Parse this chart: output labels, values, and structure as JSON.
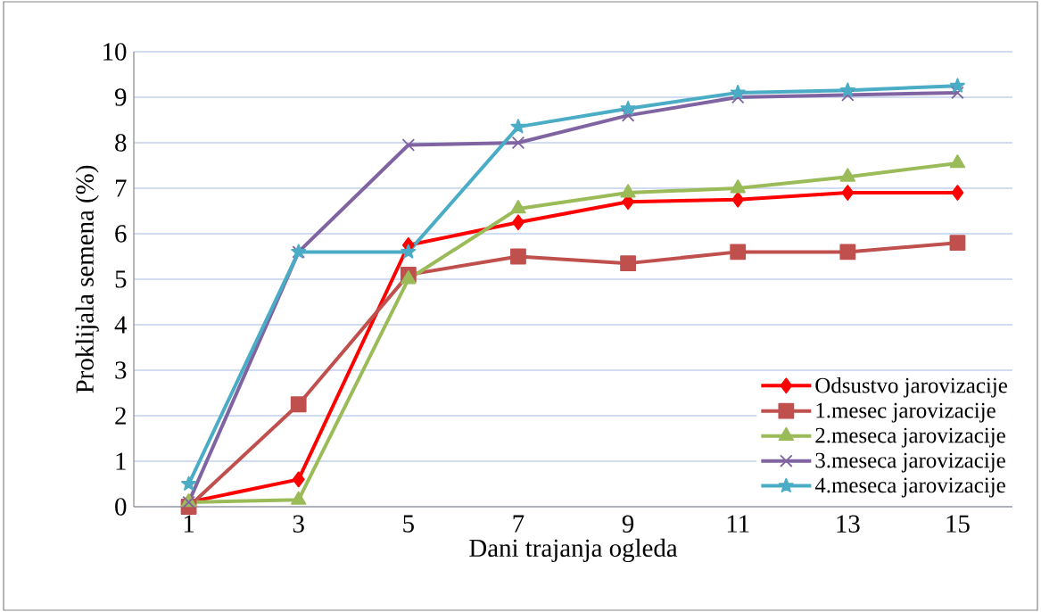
{
  "chart_data": {
    "type": "line",
    "xlabel": "Dani trajanja ogleda",
    "ylabel": "Proklijala semena (%)",
    "categories": [
      "1",
      "3",
      "5",
      "7",
      "9",
      "11",
      "13",
      "15"
    ],
    "series": [
      {
        "name": "Odsustvo jarovizacije",
        "color": "#ff0000",
        "marker": "diamond",
        "values": [
          0.1,
          0.6,
          5.75,
          6.25,
          6.7,
          6.75,
          6.9,
          6.9
        ]
      },
      {
        "name": "1.mesec jarovizacije",
        "color": "#c0504d",
        "marker": "square",
        "values": [
          0,
          2.25,
          5.1,
          5.5,
          5.35,
          5.6,
          5.6,
          5.8
        ]
      },
      {
        "name": "2.meseca jarovizacije",
        "color": "#9bbb59",
        "marker": "triangle",
        "values": [
          0.1,
          0.15,
          5.0,
          6.55,
          6.9,
          7.0,
          7.25,
          7.55
        ]
      },
      {
        "name": "3.meseca jarovizacije",
        "color": "#8064a2",
        "marker": "cross",
        "values": [
          0.1,
          5.6,
          7.95,
          8.0,
          8.6,
          9.0,
          9.05,
          9.1
        ]
      },
      {
        "name": "4.meseca jarovizacije",
        "color": "#4bacc6",
        "marker": "star",
        "values": [
          0.5,
          5.6,
          5.6,
          8.35,
          8.75,
          9.1,
          9.15,
          9.25
        ]
      }
    ],
    "ylim": [
      0,
      10
    ],
    "yticks": [
      0,
      1,
      2,
      3,
      4,
      5,
      6,
      7,
      8,
      9,
      10
    ],
    "grid": "y",
    "legend": "bottom right",
    "line_style": "solid"
  }
}
